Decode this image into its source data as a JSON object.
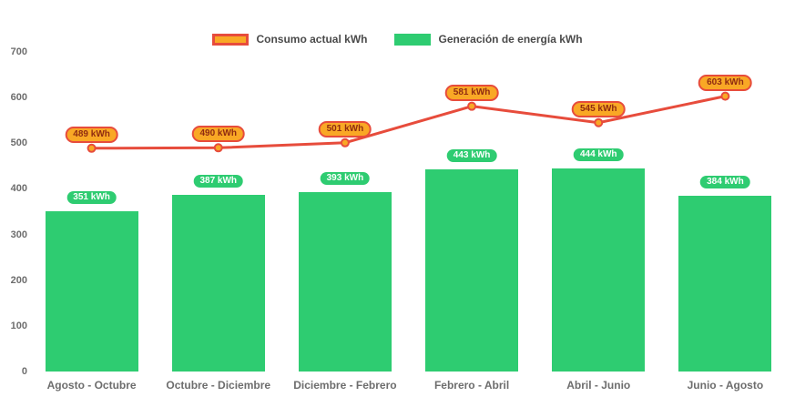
{
  "chart_data": {
    "type": "bar",
    "subtype": "combo-bar-line",
    "categories": [
      "Agosto - Octubre",
      "Octubre - Diciembre",
      "Diciembre - Febrero",
      "Febrero - Abril",
      "Abril - Junio",
      "Junio - Agosto"
    ],
    "series": [
      {
        "name": "Consumo actual kWh",
        "type": "line",
        "values": [
          489,
          490,
          501,
          581,
          545,
          603
        ],
        "line_color": "#e74c3c",
        "point_fill": "#f9a825",
        "point_border": "#e74c3c",
        "label_bg": "#f9a825",
        "label_border": "#e74c3c",
        "label_text_color": "#8f2b11"
      },
      {
        "name": "Generación de energía kWh",
        "type": "bar",
        "values": [
          351,
          387,
          393,
          443,
          444,
          384
        ],
        "bar_color": "#2ecc71",
        "label_bg": "#2ecc71",
        "label_text_color": "#ffffff"
      }
    ],
    "title": "",
    "xlabel": "",
    "ylabel": "",
    "ylim": [
      0,
      700
    ],
    "yticks": [
      0,
      100,
      200,
      300,
      400,
      500,
      600,
      700
    ],
    "grid": false,
    "legend_position": "top",
    "value_label_suffix": " kWh",
    "axis_text_color": "#6d6d6d",
    "background_color": "#ffffff"
  }
}
